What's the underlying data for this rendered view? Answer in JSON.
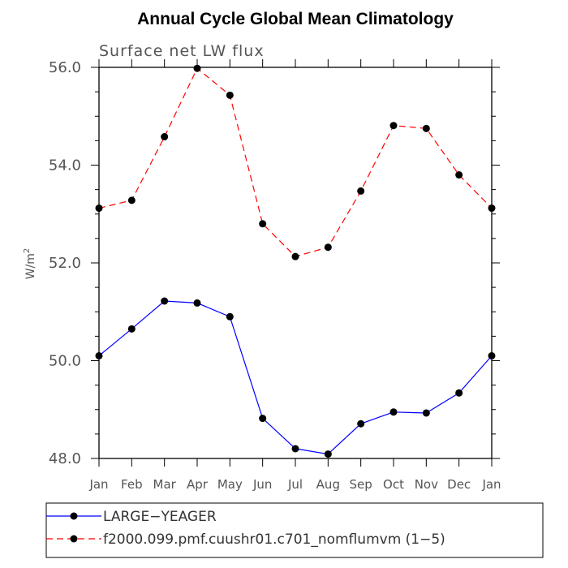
{
  "chart_data": {
    "type": "line",
    "title": "Annual Cycle Global Mean Climatology",
    "subtitle": "Surface net LW flux",
    "ylabel": "W/m",
    "ylabel_sup": "2",
    "xlabel": "",
    "categories": [
      "Jan",
      "Feb",
      "Mar",
      "Apr",
      "May",
      "Jun",
      "Jul",
      "Aug",
      "Sep",
      "Oct",
      "Nov",
      "Dec",
      "Jan"
    ],
    "yticks": [
      "48.0",
      "50.0",
      "52.0",
      "54.0",
      "56.0"
    ],
    "ylim": [
      48.0,
      56.0
    ],
    "grid": false,
    "legend_position": "bottom",
    "series": [
      {
        "name": "LARGE−YEAGER",
        "color": "#0000ff",
        "dash": "solid",
        "values": [
          50.1,
          50.65,
          51.22,
          51.18,
          50.9,
          48.82,
          48.2,
          48.09,
          48.71,
          48.95,
          48.93,
          49.34,
          50.1
        ]
      },
      {
        "name": "f2000.099.pmf.cuushr01.c701_nomflumvm (1−5)",
        "color": "#ff0000",
        "dash": "dashed",
        "values": [
          53.12,
          53.28,
          54.58,
          55.98,
          55.43,
          52.8,
          52.13,
          52.32,
          53.47,
          54.81,
          54.75,
          53.8,
          53.12
        ]
      }
    ]
  }
}
